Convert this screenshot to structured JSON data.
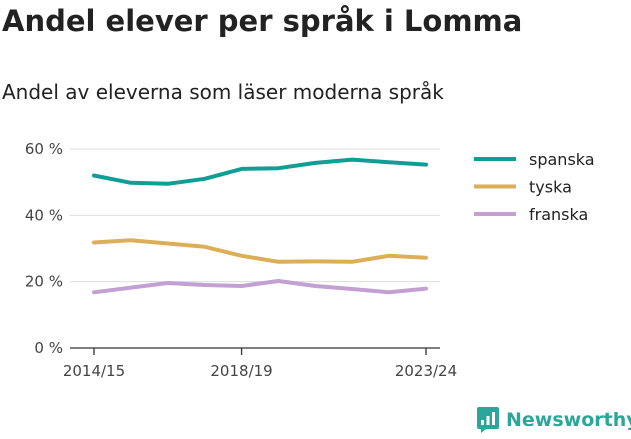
{
  "header": {
    "title": "Andel elever per språk i Lomma",
    "subtitle": "Andel av eleverna som läser moderna språk"
  },
  "brand": {
    "name": "Newsworthy",
    "icon": "newsworthy-logo-icon",
    "color": "#2aa79a"
  },
  "chart_data": {
    "type": "line",
    "title": "Andel elever per språk i Lomma",
    "subtitle": "Andel av eleverna som läser moderna språk",
    "xlabel": "",
    "ylabel": "",
    "x": [
      "2014/15",
      "2015/16",
      "2016/17",
      "2017/18",
      "2018/19",
      "2019/20",
      "2020/21",
      "2021/22",
      "2022/23",
      "2023/24"
    ],
    "x_tick_labels": [
      "2014/15",
      "2018/19",
      "2023/24"
    ],
    "y_ticks": [
      0,
      20,
      40,
      60
    ],
    "y_tick_labels": [
      "0 %",
      "20 %",
      "40 %",
      "60 %"
    ],
    "ylim": [
      0,
      60
    ],
    "grid": true,
    "legend_position": "right",
    "series": [
      {
        "name": "spanska",
        "color": "#0d9e94",
        "values": [
          52,
          49.8,
          49.5,
          51,
          54,
          54.2,
          55.8,
          56.8,
          56,
          55.3
        ]
      },
      {
        "name": "tyska",
        "color": "#ddae58",
        "values": [
          31.8,
          32.5,
          31.5,
          30.5,
          27.8,
          26,
          26.1,
          26,
          27.8,
          27.2
        ]
      },
      {
        "name": "franska",
        "color": "#c39fd2",
        "values": [
          16.8,
          18.2,
          19.6,
          19,
          18.7,
          20.2,
          18.7,
          17.8,
          16.8,
          17.9
        ]
      }
    ]
  }
}
